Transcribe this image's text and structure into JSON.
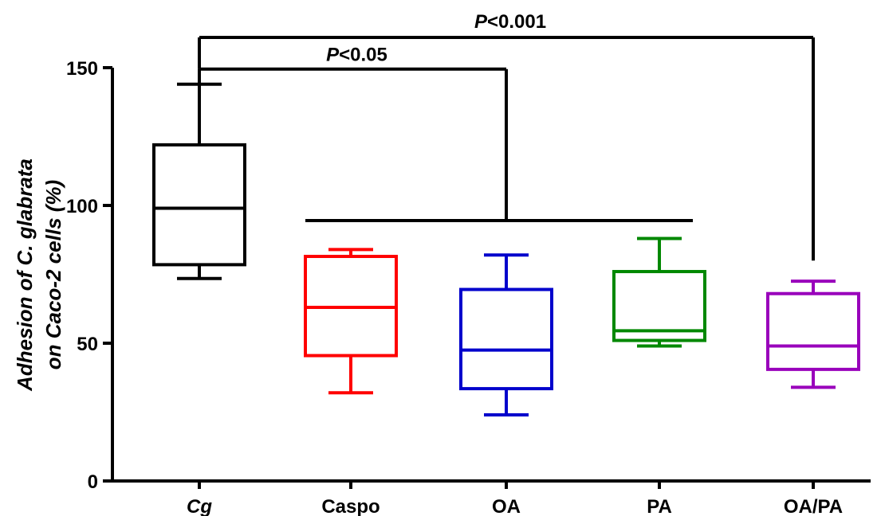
{
  "chart_data": {
    "type": "box",
    "categories": [
      "Cg",
      "Caspo",
      "OA",
      "PA",
      "OA/PA"
    ],
    "ylabel_line1": "Adhesion of C. glabrata",
    "ylabel_line2": "on Caco-2 cells (%)",
    "ylim": [
      0,
      150
    ],
    "yticks": [
      0,
      50,
      100,
      150
    ],
    "series": [
      {
        "category": "Cg",
        "color": "#000000",
        "min": 73.5,
        "q1": 78.5,
        "median": 99,
        "q3": 122,
        "max": 144,
        "italic": true
      },
      {
        "category": "Caspo",
        "color": "#ff0000",
        "min": 32,
        "q1": 45.5,
        "median": 63,
        "q3": 81.5,
        "max": 84,
        "italic": false
      },
      {
        "category": "OA",
        "color": "#0000cc",
        "min": 24,
        "q1": 33.5,
        "median": 47.5,
        "q3": 69.5,
        "max": 82,
        "italic": false
      },
      {
        "category": "PA",
        "color": "#008800",
        "min": 49,
        "q1": 51,
        "median": 54.5,
        "q3": 76,
        "max": 88,
        "italic": false
      },
      {
        "category": "OA/PA",
        "color": "#9900bb",
        "min": 34,
        "q1": 40.5,
        "median": 49,
        "q3": 68,
        "max": 72.5,
        "italic": false
      }
    ],
    "significance": [
      {
        "label_prefix": "P",
        "label_suffix": "<0.05",
        "from": "Cg",
        "to_group": [
          "Caspo",
          "OA",
          "PA"
        ],
        "level": 149.5,
        "drop_from": 149.5,
        "drop_to": 94.5
      },
      {
        "label_prefix": "P",
        "label_suffix": "<0.001",
        "from": "Cg",
        "to": "OA/PA",
        "level": 161,
        "drop_to": 80
      }
    ]
  }
}
